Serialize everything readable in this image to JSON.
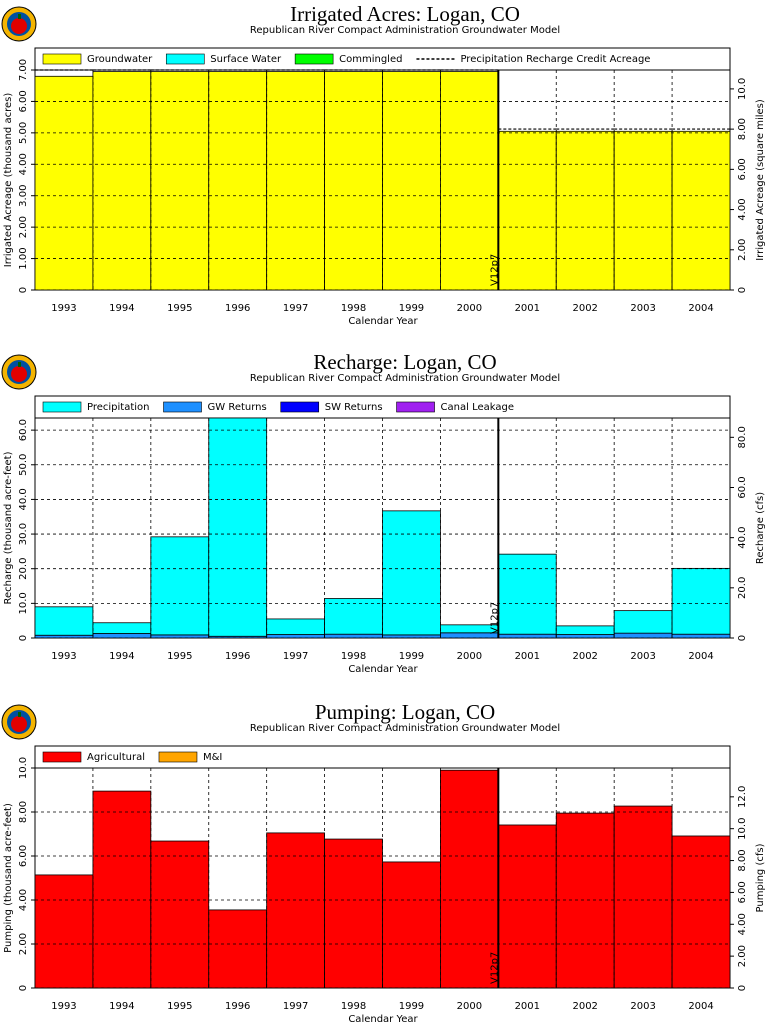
{
  "chart_data": [
    {
      "type": "bar",
      "stacked": true,
      "title": "Irrigated Acres: Logan, CO",
      "subtitle": "Republican River Compact Administration Groundwater Model",
      "x_label": "Calendar Year",
      "y_label": "Irrigated Acreage (thousand acres)",
      "y2_label": "Irrigated Acreage (square miles)",
      "categories": [
        "1993",
        "1994",
        "1995",
        "1996",
        "1997",
        "1998",
        "1999",
        "2000",
        "2001",
        "2002",
        "2003",
        "2004"
      ],
      "series": [
        {
          "name": "Groundwater",
          "color": "#ffff00",
          "values": [
            6.8,
            6.95,
            6.95,
            6.95,
            6.95,
            6.95,
            6.95,
            6.95,
            5.05,
            5.05,
            5.05,
            5.05
          ]
        },
        {
          "name": "Surface Water",
          "color": "#00ffff",
          "values": [
            0,
            0,
            0,
            0,
            0,
            0,
            0,
            0,
            0,
            0,
            0,
            0
          ]
        },
        {
          "name": "Commingled",
          "color": "#00ff00",
          "values": [
            0,
            0,
            0,
            0,
            0,
            0,
            0,
            0,
            0,
            0,
            0,
            0
          ]
        },
        {
          "name": "Precipitation Recharge Credit Acreage",
          "color": "#000000",
          "kind": "line",
          "values": [
            7.0,
            7.0,
            7.0,
            7.0,
            7.0,
            7.0,
            7.0,
            7.0,
            5.12,
            5.12,
            5.12,
            5.12
          ]
        }
      ],
      "ylim": [
        0,
        7.0
      ],
      "yticks": [
        0,
        {
          "value": 1,
          "label": "1.00"
        },
        {
          "value": 2,
          "label": "2.00"
        },
        {
          "value": 3,
          "label": "3.00"
        },
        {
          "value": 4,
          "label": "4.00"
        },
        {
          "value": 5,
          "label": "5.00"
        },
        {
          "value": 6,
          "label": "6.00"
        },
        {
          "value": 7,
          "label": "7.00"
        }
      ],
      "y2lim": [
        0,
        10.94
      ],
      "y2ticks": [
        0,
        {
          "value": 2,
          "label": "2.00"
        },
        {
          "value": 4,
          "label": "4.00"
        },
        {
          "value": 6,
          "label": "6.00"
        },
        {
          "value": 8,
          "label": "8.00"
        },
        {
          "value": 10,
          "label": "10.0"
        }
      ],
      "grid": true,
      "legend": "top",
      "vline": {
        "label": "V12p7",
        "before": "2001"
      }
    },
    {
      "type": "bar",
      "stacked": true,
      "title": "Recharge: Logan, CO",
      "subtitle": "Republican River Compact Administration Groundwater Model",
      "x_label": "Calendar Year",
      "y_label": "Recharge (thousand acre-feet)",
      "y2_label": "Recharge (cfs)",
      "categories": [
        "1993",
        "1994",
        "1995",
        "1996",
        "1997",
        "1998",
        "1999",
        "2000",
        "2001",
        "2002",
        "2003",
        "2004"
      ],
      "series": [
        {
          "name": "GW Returns",
          "color": "#1e90ff",
          "values": [
            0.8,
            1.3,
            0.9,
            0.5,
            1.0,
            1.1,
            0.9,
            1.5,
            1.1,
            1.0,
            1.4,
            1.1
          ]
        },
        {
          "name": "SW Returns",
          "color": "#0000ff",
          "values": [
            0,
            0,
            0,
            0,
            0,
            0,
            0,
            0,
            0,
            0,
            0,
            0
          ]
        },
        {
          "name": "Canal Leakage",
          "color": "#a020f0",
          "values": [
            0,
            0,
            0,
            0,
            0,
            0,
            0,
            0,
            0,
            0,
            0,
            0
          ]
        },
        {
          "name": "Precipitation",
          "color": "#00ffff",
          "values": [
            8.2,
            3.1,
            28.3,
            63.0,
            4.5,
            10.3,
            35.8,
            2.3,
            23.1,
            2.5,
            6.5,
            19.0
          ]
        }
      ],
      "legend_order": [
        3,
        0,
        1,
        2
      ],
      "ylim": [
        0,
        63.5
      ],
      "yticks": [
        0,
        {
          "value": 10,
          "label": "10.0"
        },
        {
          "value": 20,
          "label": "20.0"
        },
        {
          "value": 30,
          "label": "30.0"
        },
        {
          "value": 40,
          "label": "40.0"
        },
        {
          "value": 50,
          "label": "50.0"
        },
        {
          "value": 60,
          "label": "60.0"
        }
      ],
      "y2lim": [
        0,
        87.7
      ],
      "y2ticks": [
        0,
        {
          "value": 20,
          "label": "20.0"
        },
        {
          "value": 40,
          "label": "40.0"
        },
        {
          "value": 60,
          "label": "60.0"
        },
        {
          "value": 80,
          "label": "80.0"
        }
      ],
      "grid": true,
      "legend": "top",
      "vline": {
        "label": "V12p7",
        "before": "2001"
      }
    },
    {
      "type": "bar",
      "stacked": true,
      "title": "Pumping: Logan, CO",
      "subtitle": "Republican River Compact Administration Groundwater Model",
      "x_label": "Calendar Year",
      "y_label": "Pumping (thousand acre-feet)",
      "y2_label": "Pumping (cfs)",
      "categories": [
        "1993",
        "1994",
        "1995",
        "1996",
        "1997",
        "1998",
        "1999",
        "2000",
        "2001",
        "2002",
        "2003",
        "2004"
      ],
      "series": [
        {
          "name": "Agricultural",
          "color": "#ff0000",
          "values": [
            5.14,
            8.95,
            6.68,
            3.55,
            7.05,
            6.77,
            5.73,
            9.9,
            7.41,
            7.95,
            8.27,
            6.91
          ]
        },
        {
          "name": "M&I",
          "color": "#ffa500",
          "values": [
            0,
            0,
            0,
            0,
            0,
            0,
            0,
            0,
            0,
            0,
            0,
            0
          ]
        }
      ],
      "ylim": [
        0,
        10.0
      ],
      "yticks": [
        0,
        {
          "value": 2,
          "label": "2.00"
        },
        {
          "value": 4,
          "label": "4.00"
        },
        {
          "value": 6,
          "label": "6.00"
        },
        {
          "value": 8,
          "label": "8.00"
        },
        {
          "value": 10,
          "label": "10.0"
        }
      ],
      "y2lim": [
        0,
        13.81
      ],
      "y2ticks": [
        0,
        {
          "value": 2,
          "label": "2.00"
        },
        {
          "value": 4,
          "label": "4.00"
        },
        {
          "value": 6,
          "label": "6.00"
        },
        {
          "value": 8,
          "label": "8.00"
        },
        {
          "value": 10,
          "label": "10.0"
        },
        {
          "value": 12,
          "label": "12.0"
        }
      ],
      "grid": true,
      "legend": "top",
      "vline": {
        "label": "V12p7",
        "before": "2001"
      }
    }
  ]
}
